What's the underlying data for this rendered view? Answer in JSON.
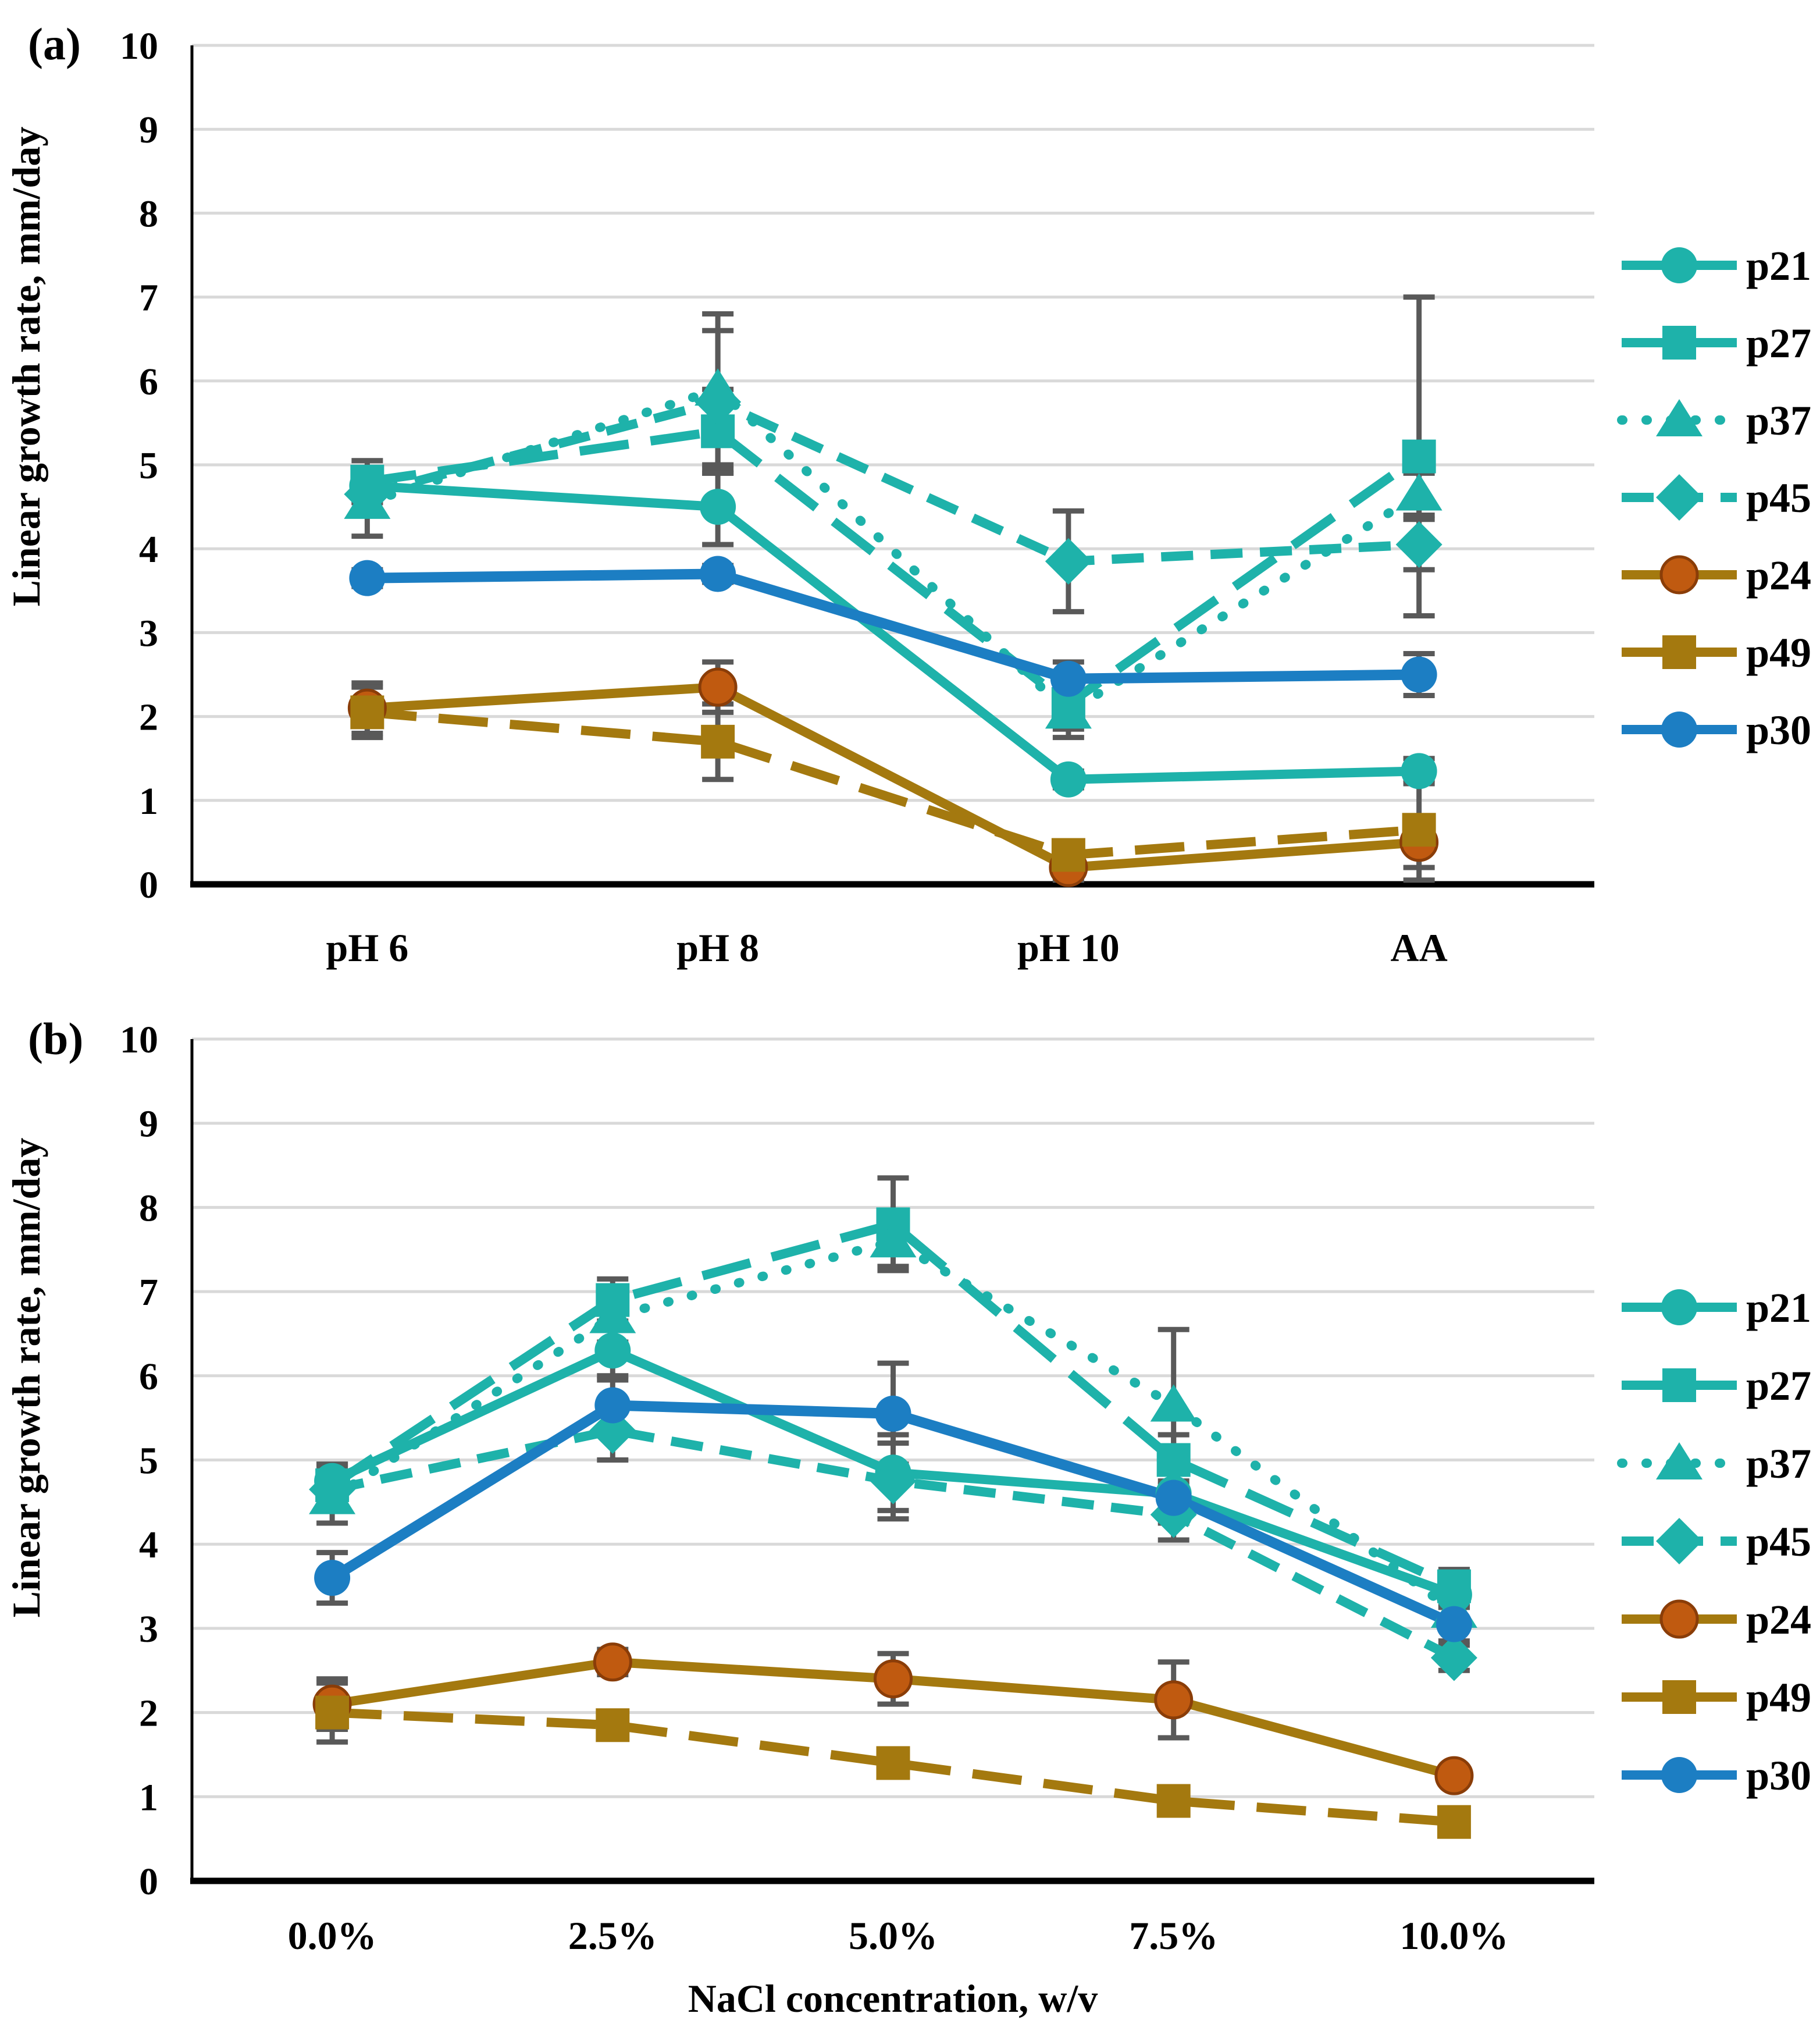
{
  "chart_data": [
    {
      "type": "line",
      "panel_label": "(a)",
      "title": "",
      "xlabel": "",
      "ylabel": "Linear growth rate, mm/day",
      "ylim": [
        0,
        10
      ],
      "yticks": [
        0,
        1,
        2,
        3,
        4,
        5,
        6,
        7,
        8,
        9,
        10
      ],
      "grid": "horizontal",
      "legend_position": "right",
      "gridline_color": "#d9d9d9",
      "error_bar_color": "#595959",
      "categories": [
        "pH 6",
        "pH 8",
        "pH 10",
        "AA"
      ],
      "series": [
        {
          "name": "p21",
          "color": "#1eb2aa",
          "line_style": "solid",
          "marker": "circle",
          "values": [
            4.75,
            4.5,
            1.25,
            1.35
          ],
          "errors": [
            0.2,
            0.45,
            0.1,
            0.15
          ]
        },
        {
          "name": "p27",
          "color": "#1eb2aa",
          "line_style": "long-dash",
          "marker": "square",
          "values": [
            4.8,
            5.4,
            2.15,
            5.1
          ],
          "errors": [
            0.25,
            0.5,
            0.3,
            1.9
          ]
        },
        {
          "name": "p37",
          "color": "#1eb2aa",
          "line_style": "dotted",
          "marker": "triangle",
          "values": [
            4.55,
            5.9,
            2.05,
            4.65
          ],
          "errors": [
            0.4,
            0.9,
            0.3,
            0.25
          ]
        },
        {
          "name": "p45",
          "color": "#1eb2aa",
          "line_style": "dash",
          "marker": "diamond",
          "values": [
            4.65,
            5.75,
            3.85,
            4.05
          ],
          "errors": [
            0.25,
            0.85,
            0.6,
            0.3
          ]
        },
        {
          "name": "p24",
          "color": "#a4790f",
          "line_style": "solid",
          "marker": "circle",
          "marker_fill": "#c05a10",
          "marker_stroke": "#8a3d08",
          "values": [
            2.1,
            2.35,
            0.2,
            0.5
          ],
          "errors": [
            0.3,
            0.3,
            0.15,
            0.3
          ]
        },
        {
          "name": "p49",
          "color": "#a4790f",
          "line_style": "long-dash",
          "marker": "square",
          "values": [
            2.05,
            1.7,
            0.35,
            0.65
          ],
          "errors": [
            0.3,
            0.45,
            0.15,
            0.6
          ]
        },
        {
          "name": "p30",
          "color": "#1c7ec3",
          "line_style": "solid",
          "marker": "circle",
          "values": [
            3.65,
            3.7,
            2.45,
            2.5
          ],
          "errors": [
            0.1,
            0.1,
            0.2,
            0.25
          ]
        }
      ]
    },
    {
      "type": "line",
      "panel_label": "(b)",
      "title": "",
      "xlabel": "NaCl concentration, w/v",
      "ylabel": "Linear growth rate, mm/day",
      "ylim": [
        0,
        10
      ],
      "yticks": [
        0,
        1,
        2,
        3,
        4,
        5,
        6,
        7,
        8,
        9,
        10
      ],
      "grid": "horizontal",
      "legend_position": "right",
      "gridline_color": "#d9d9d9",
      "error_bar_color": "#595959",
      "categories": [
        "0.0%",
        "2.5%",
        "5.0%",
        "7.5%",
        "10.0%"
      ],
      "series": [
        {
          "name": "p21",
          "color": "#1eb2aa",
          "line_style": "solid",
          "marker": "circle",
          "values": [
            4.75,
            6.3,
            4.85,
            4.6,
            3.4
          ],
          "errors": [
            0.2,
            0.3,
            0.45,
            0.25,
            0.15
          ]
        },
        {
          "name": "p27",
          "color": "#1eb2aa",
          "line_style": "long-dash",
          "marker": "square",
          "values": [
            4.7,
            6.9,
            7.8,
            5.0,
            3.5
          ],
          "errors": [
            0.25,
            0.25,
            0.55,
            0.3,
            0.2
          ]
        },
        {
          "name": "p37",
          "color": "#1eb2aa",
          "line_style": "dotted",
          "marker": "triangle",
          "values": [
            4.55,
            6.7,
            7.6,
            5.65,
            3.2
          ],
          "errors": [
            0.3,
            0.3,
            0.3,
            0.9,
            0.2
          ]
        },
        {
          "name": "p45",
          "color": "#1eb2aa",
          "line_style": "dash",
          "marker": "diamond",
          "values": [
            4.65,
            5.35,
            4.75,
            4.35,
            2.65
          ],
          "errors": [
            0.25,
            0.35,
            0.45,
            0.3,
            0.15
          ]
        },
        {
          "name": "p24",
          "color": "#a4790f",
          "line_style": "solid",
          "marker": "circle",
          "marker_fill": "#c05a10",
          "marker_stroke": "#8a3d08",
          "values": [
            2.1,
            2.6,
            2.4,
            2.15,
            1.25
          ],
          "errors": [
            0.3,
            0.15,
            0.3,
            0.45,
            0.1
          ]
        },
        {
          "name": "p49",
          "color": "#a4790f",
          "line_style": "long-dash",
          "marker": "square",
          "values": [
            2.0,
            1.85,
            1.4,
            0.95,
            0.7
          ],
          "errors": [
            0.35,
            0.15,
            0.15,
            0.15,
            0.1
          ]
        },
        {
          "name": "p30",
          "color": "#1c7ec3",
          "line_style": "solid",
          "marker": "circle",
          "values": [
            3.6,
            5.65,
            5.55,
            4.55,
            3.05
          ],
          "errors": [
            0.3,
            0.3,
            0.6,
            0.3,
            0.2
          ]
        }
      ]
    }
  ],
  "colors": {
    "teal": "#1eb2aa",
    "gold": "#a4790f",
    "blue": "#1c7ec3",
    "p24_marker_fill": "#c05a10",
    "error_bar": "#595959",
    "gridline": "#d9d9d9",
    "axis": "#000000"
  }
}
